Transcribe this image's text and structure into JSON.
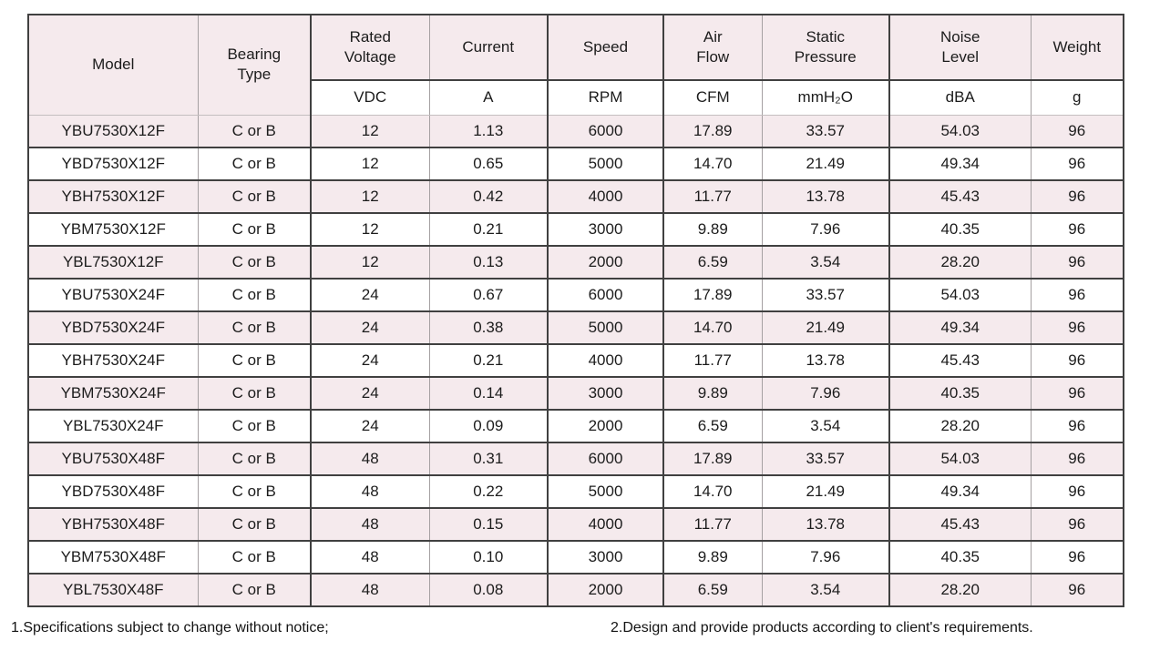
{
  "table": {
    "columns": [
      {
        "key": "model",
        "label": "Model",
        "unit": null
      },
      {
        "key": "bearing",
        "label": "Bearing\nType",
        "unit": null
      },
      {
        "key": "voltage",
        "label": "Rated\nVoltage",
        "unit": "VDC"
      },
      {
        "key": "current",
        "label": "Current",
        "unit": "A"
      },
      {
        "key": "speed",
        "label": "Speed",
        "unit": "RPM"
      },
      {
        "key": "airflow",
        "label": "Air\nFlow",
        "unit": "CFM"
      },
      {
        "key": "pressure",
        "label": "Static\nPressure",
        "unit": "mmH₂O"
      },
      {
        "key": "noise",
        "label": "Noise\nLevel",
        "unit": "dBA"
      },
      {
        "key": "weight",
        "label": "Weight",
        "unit": "g"
      }
    ],
    "rows": [
      [
        "YBU7530X12F",
        "C or B",
        "12",
        "1.13",
        "6000",
        "17.89",
        "33.57",
        "54.03",
        "96"
      ],
      [
        "YBD7530X12F",
        "C or B",
        "12",
        "0.65",
        "5000",
        "14.70",
        "21.49",
        "49.34",
        "96"
      ],
      [
        "YBH7530X12F",
        "C or B",
        "12",
        "0.42",
        "4000",
        "11.77",
        "13.78",
        "45.43",
        "96"
      ],
      [
        "YBM7530X12F",
        "C or B",
        "12",
        "0.21",
        "3000",
        "9.89",
        "7.96",
        "40.35",
        "96"
      ],
      [
        "YBL7530X12F",
        "C or B",
        "12",
        "0.13",
        "2000",
        "6.59",
        "3.54",
        "28.20",
        "96"
      ],
      [
        "YBU7530X24F",
        "C or B",
        "24",
        "0.67",
        "6000",
        "17.89",
        "33.57",
        "54.03",
        "96"
      ],
      [
        "YBD7530X24F",
        "C or B",
        "24",
        "0.38",
        "5000",
        "14.70",
        "21.49",
        "49.34",
        "96"
      ],
      [
        "YBH7530X24F",
        "C or B",
        "24",
        "0.21",
        "4000",
        "11.77",
        "13.78",
        "45.43",
        "96"
      ],
      [
        "YBM7530X24F",
        "C or B",
        "24",
        "0.14",
        "3000",
        "9.89",
        "7.96",
        "40.35",
        "96"
      ],
      [
        "YBL7530X24F",
        "C or B",
        "24",
        "0.09",
        "2000",
        "6.59",
        "3.54",
        "28.20",
        "96"
      ],
      [
        "YBU7530X48F",
        "C or B",
        "48",
        "0.31",
        "6000",
        "17.89",
        "33.57",
        "54.03",
        "96"
      ],
      [
        "YBD7530X48F",
        "C or B",
        "48",
        "0.22",
        "5000",
        "14.70",
        "21.49",
        "49.34",
        "96"
      ],
      [
        "YBH7530X48F",
        "C or B",
        "48",
        "0.15",
        "4000",
        "11.77",
        "13.78",
        "45.43",
        "96"
      ],
      [
        "YBM7530X48F",
        "C or B",
        "48",
        "0.10",
        "3000",
        "9.89",
        "7.96",
        "40.35",
        "96"
      ],
      [
        "YBL7530X48F",
        "C or B",
        "48",
        "0.08",
        "2000",
        "6.59",
        "3.54",
        "28.20",
        "96"
      ]
    ],
    "row_stripe_start": "pink"
  },
  "notes": {
    "note1": "1.Specifications subject to change without notice;",
    "note2": "2.Design and provide products according to client's requirements."
  },
  "colors": {
    "row_pink": "#f5eaed",
    "row_white": "#ffffff",
    "border_dark": "#404040",
    "border_thin": "#a5a0a2",
    "text": "#1c1c1c"
  }
}
